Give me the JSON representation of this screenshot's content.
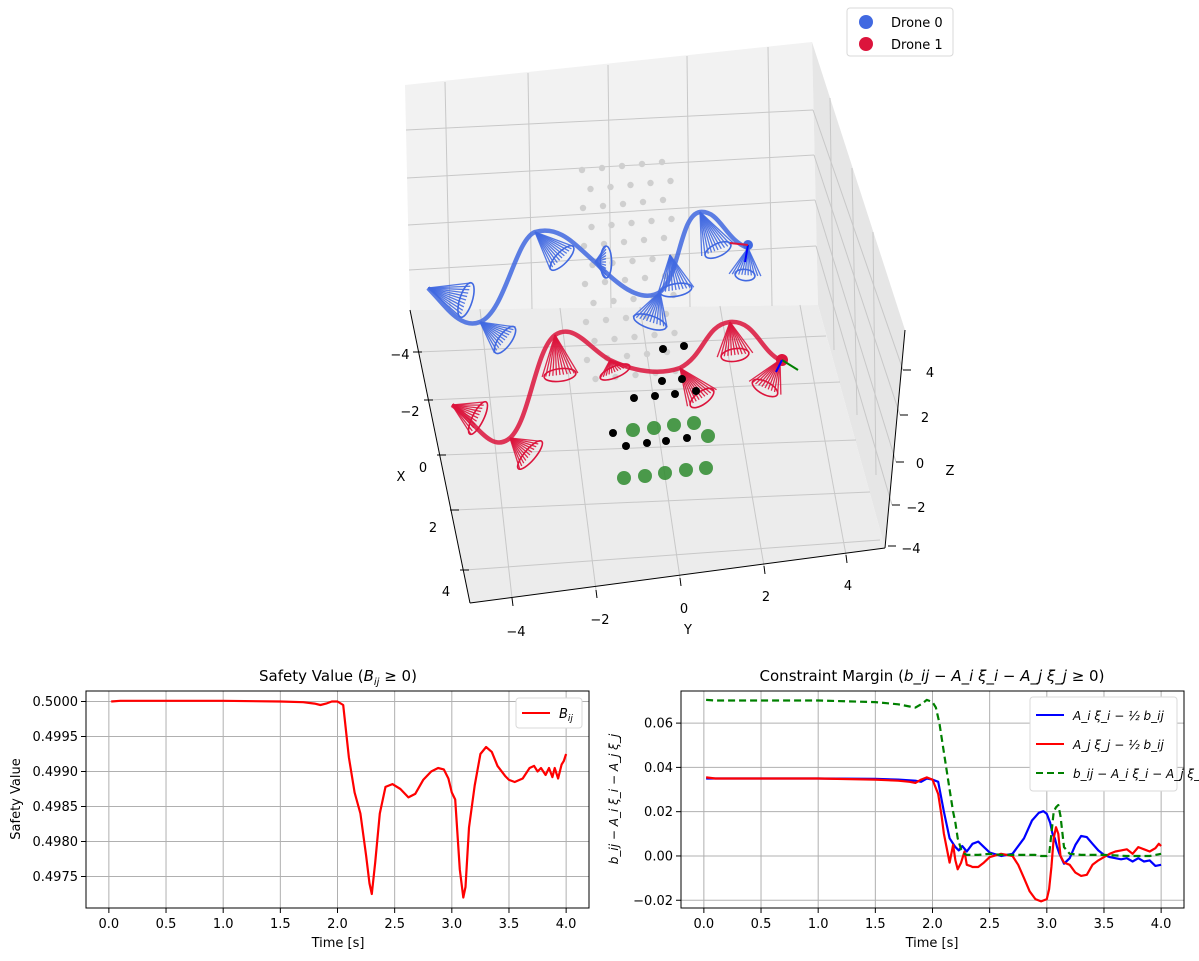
{
  "chart_data": [
    {
      "type": "scatter",
      "projection": "3d",
      "xlabel": "X",
      "ylabel": "Y",
      "zlabel": "Z",
      "xticks": [
        "−4",
        "−2",
        "0",
        "2",
        "4"
      ],
      "yticks": [
        "−4",
        "−2",
        "0",
        "2",
        "4"
      ],
      "zticks": [
        "4",
        "2",
        "0",
        "−2",
        "−4"
      ],
      "grid": true,
      "legend": {
        "placement": "top-right",
        "entries": [
          {
            "label": "Drone 0",
            "color": "#4169E1"
          },
          {
            "label": "Drone 1",
            "color": "#DC143C"
          }
        ]
      },
      "notes": "Two drone trajectories with field-of-view cones, grey waypoint grid, black and green target points"
    },
    {
      "type": "line",
      "title": "Safety Value ($B_{ij} \\geq 0$)",
      "title_parts": {
        "main": "Safety Value (",
        "sym": "B",
        "sub": "ij",
        "rest": " ≥ 0)"
      },
      "xlabel": "Time [s]",
      "ylabel": "Safety Value",
      "xlim": [
        -0.2,
        4.2
      ],
      "ylim": [
        0.49705,
        0.50015
      ],
      "xticks": [
        "0.0",
        "0.5",
        "1.0",
        "1.5",
        "2.0",
        "2.5",
        "3.0",
        "3.5",
        "4.0"
      ],
      "xtick_values": [
        0,
        0.5,
        1,
        1.5,
        2,
        2.5,
        3,
        3.5,
        4
      ],
      "yticks": [
        "0.4975",
        "0.4980",
        "0.4985",
        "0.4990",
        "0.4995",
        "0.5000"
      ],
      "ytick_values": [
        0.4975,
        0.498,
        0.4985,
        0.499,
        0.4995,
        0.5
      ],
      "grid": true,
      "legend": {
        "placement": "top-right",
        "entries": [
          {
            "label": "B_ij",
            "color": "#FF0000"
          }
        ]
      },
      "series": [
        {
          "name": "B_ij",
          "color": "#FF0000",
          "x": [
            0.02,
            0.1,
            0.5,
            1.0,
            1.5,
            1.7,
            1.8,
            1.85,
            1.9,
            1.95,
            2.0,
            2.05,
            2.1,
            2.15,
            2.2,
            2.25,
            2.28,
            2.3,
            2.33,
            2.37,
            2.42,
            2.48,
            2.55,
            2.62,
            2.68,
            2.75,
            2.82,
            2.88,
            2.93,
            2.97,
            3.0,
            3.03,
            3.07,
            3.1,
            3.12,
            3.15,
            3.2,
            3.25,
            3.3,
            3.35,
            3.4,
            3.47,
            3.5,
            3.55,
            3.62,
            3.68,
            3.72,
            3.75,
            3.78,
            3.82,
            3.85,
            3.88,
            3.9,
            3.93,
            3.96,
            3.98,
            4.0
          ],
          "y": [
            0.5,
            0.50001,
            0.50001,
            0.50001,
            0.5,
            0.49999,
            0.49997,
            0.49995,
            0.49997,
            0.5,
            0.5,
            0.49995,
            0.4992,
            0.4987,
            0.4984,
            0.4978,
            0.4974,
            0.49725,
            0.4977,
            0.4984,
            0.49878,
            0.49882,
            0.49875,
            0.49863,
            0.49868,
            0.49888,
            0.499,
            0.49905,
            0.49903,
            0.4989,
            0.4987,
            0.4986,
            0.4976,
            0.4972,
            0.49735,
            0.4982,
            0.4988,
            0.49925,
            0.49935,
            0.49928,
            0.49908,
            0.49893,
            0.49888,
            0.49885,
            0.4989,
            0.49905,
            0.49908,
            0.499,
            0.49905,
            0.49895,
            0.49905,
            0.49892,
            0.49905,
            0.4989,
            0.4991,
            0.49915,
            0.49925
          ]
        }
      ]
    },
    {
      "type": "line",
      "title": "Constraint Margin ($b_{ij} - A_i\\xi_i - A_j\\xi_j \\geq 0$)",
      "title_parts": {
        "main": "Constraint Margin (",
        "expr": "b_ij − A_i ξ_i − A_j ξ_j",
        "rest": " ≥ 0)"
      },
      "xlabel": "Time [s]",
      "ylabel": "b_ij − A_i ξ_i − A_j ξ_j",
      "xlim": [
        -0.2,
        4.2
      ],
      "ylim": [
        -0.0235,
        0.0745
      ],
      "xticks": [
        "0.0",
        "0.5",
        "1.0",
        "1.5",
        "2.0",
        "2.5",
        "3.0",
        "3.5",
        "4.0"
      ],
      "xtick_values": [
        0,
        0.5,
        1,
        1.5,
        2,
        2.5,
        3,
        3.5,
        4
      ],
      "yticks": [
        "−0.02",
        "0.00",
        "0.02",
        "0.04",
        "0.06"
      ],
      "ytick_values": [
        -0.02,
        0,
        0.02,
        0.04,
        0.06
      ],
      "grid": true,
      "legend": {
        "placement": "top-right",
        "entries": [
          {
            "label": "A_i ξ_i − ½ b_ij",
            "color": "#0000FF",
            "dash": "solid"
          },
          {
            "label": "A_j ξ_j − ½ b_ij",
            "color": "#FF0000",
            "dash": "solid"
          },
          {
            "label": "b_ij − A_i ξ_i − A_j ξ_j",
            "color": "#008000",
            "dash": "dashed"
          }
        ]
      },
      "series": [
        {
          "name": "A_i ξ_i − ½ b_ij",
          "color": "#0000FF",
          "dash": "solid",
          "x": [
            0.02,
            0.1,
            0.5,
            1.0,
            1.5,
            1.7,
            1.85,
            1.9,
            1.95,
            2.0,
            2.05,
            2.1,
            2.15,
            2.2,
            2.23,
            2.26,
            2.3,
            2.35,
            2.4,
            2.5,
            2.6,
            2.7,
            2.8,
            2.87,
            2.93,
            2.97,
            3.0,
            3.03,
            3.05,
            3.07,
            3.09,
            3.11,
            3.15,
            3.2,
            3.25,
            3.3,
            3.35,
            3.4,
            3.45,
            3.5,
            3.55,
            3.6,
            3.65,
            3.7,
            3.75,
            3.8,
            3.85,
            3.9,
            3.95,
            4.0
          ],
          "y": [
            0.035,
            0.035,
            0.035,
            0.035,
            0.0348,
            0.0345,
            0.034,
            0.0335,
            0.035,
            0.0345,
            0.0335,
            0.02,
            0.008,
            0.004,
            0.0025,
            0.0045,
            0.002,
            0.0055,
            0.0065,
            0.0015,
            0.0,
            0.001,
            0.008,
            0.016,
            0.0195,
            0.0202,
            0.019,
            0.015,
            0.01,
            0.008,
            0.004,
            0.001,
            -0.0035,
            -0.001,
            0.005,
            0.009,
            0.0085,
            0.0055,
            0.0025,
            0.0005,
            -0.0005,
            -0.001,
            -0.0015,
            -0.001,
            -0.0025,
            -0.001,
            -0.0025,
            -0.002,
            -0.0045,
            -0.004
          ]
        },
        {
          "name": "A_j ξ_j − ½ b_ij",
          "color": "#FF0000",
          "dash": "solid",
          "x": [
            0.02,
            0.1,
            0.5,
            1.0,
            1.5,
            1.7,
            1.8,
            1.85,
            1.9,
            1.95,
            2.0,
            2.05,
            2.08,
            2.1,
            2.13,
            2.15,
            2.18,
            2.2,
            2.22,
            2.25,
            2.28,
            2.3,
            2.33,
            2.35,
            2.4,
            2.45,
            2.5,
            2.6,
            2.7,
            2.75,
            2.8,
            2.85,
            2.9,
            2.95,
            3.0,
            3.02,
            3.04,
            3.06,
            3.08,
            3.1,
            3.12,
            3.15,
            3.2,
            3.25,
            3.3,
            3.35,
            3.4,
            3.45,
            3.5,
            3.55,
            3.6,
            3.65,
            3.7,
            3.75,
            3.8,
            3.85,
            3.9,
            3.95,
            3.98,
            4.0
          ],
          "y": [
            0.0355,
            0.035,
            0.035,
            0.035,
            0.0345,
            0.034,
            0.0335,
            0.033,
            0.0345,
            0.0355,
            0.0345,
            0.028,
            0.018,
            0.01,
            0.002,
            -0.003,
            0.005,
            -0.002,
            -0.006,
            -0.003,
            0.002,
            -0.004,
            -0.0045,
            -0.005,
            -0.005,
            -0.003,
            -0.0005,
            0.001,
            0.0,
            -0.004,
            -0.01,
            -0.016,
            -0.0195,
            -0.0205,
            -0.0195,
            -0.015,
            -0.005,
            0.008,
            0.013,
            0.01,
            0.0,
            -0.003,
            -0.004,
            -0.0075,
            -0.009,
            -0.0085,
            -0.004,
            -0.002,
            -0.0005,
            0.001,
            0.002,
            0.0025,
            0.003,
            0.001,
            0.004,
            0.003,
            0.002,
            0.0035,
            0.0055,
            0.0045
          ]
        },
        {
          "name": "b_ij − A_i ξ_i − A_j ξ_j",
          "color": "#008000",
          "dash": "dashed",
          "x": [
            0.02,
            0.1,
            0.5,
            1.0,
            1.5,
            1.6,
            1.7,
            1.8,
            1.85,
            1.9,
            1.95,
            2.0,
            2.03,
            2.06,
            2.09,
            2.12,
            2.15,
            2.18,
            2.2,
            2.22,
            2.25,
            2.28,
            2.3,
            2.4,
            2.5,
            2.6,
            2.7,
            2.8,
            2.9,
            2.95,
            3.0,
            3.02,
            3.04,
            3.06,
            3.08,
            3.1,
            3.12,
            3.15,
            3.2,
            3.3,
            3.5,
            3.7,
            3.9,
            4.0
          ],
          "y": [
            0.0705,
            0.0702,
            0.0702,
            0.0702,
            0.0695,
            0.069,
            0.0685,
            0.0675,
            0.067,
            0.0685,
            0.0705,
            0.0695,
            0.067,
            0.06,
            0.05,
            0.04,
            0.03,
            0.02,
            0.015,
            0.008,
            0.003,
            0.001,
            0.0005,
            0.0005,
            0.001,
            0.0005,
            0.0005,
            0.0005,
            0.0005,
            0.0,
            0.0,
            0.0005,
            0.01,
            0.02,
            0.022,
            0.023,
            0.018,
            0.004,
            0.001,
            0.0005,
            0.0005,
            0.0,
            0.0,
            0.001
          ]
        }
      ]
    }
  ]
}
